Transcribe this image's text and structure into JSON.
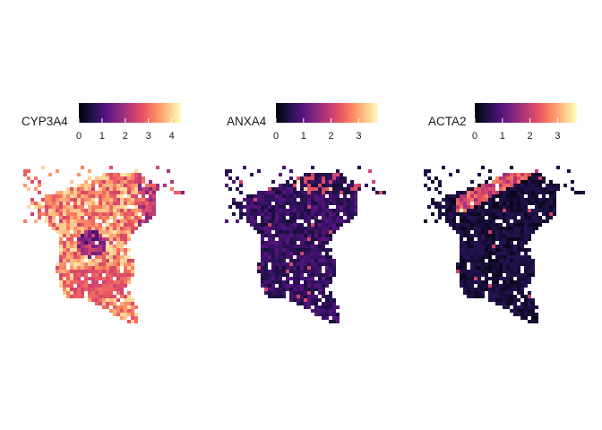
{
  "chart_data": [
    {
      "type": "heatmap",
      "title": "",
      "legend": {
        "title": "CYP3A4",
        "placement": "top",
        "ticks": [
          0,
          1,
          2,
          3,
          4
        ],
        "range": [
          0,
          4.4
        ]
      },
      "values_summary": "spatial spot expression; mostly high values (2-4.4) across tissue section, lower values in center and bottom lobe"
    },
    {
      "type": "heatmap",
      "title": "",
      "legend": {
        "title": "ANXA4",
        "placement": "top",
        "ticks": [
          0,
          1,
          2,
          3
        ],
        "range": [
          0,
          3.7
        ]
      },
      "values_summary": "spatial spot expression; mostly low values (0-1), a few higher spots along upper edge"
    },
    {
      "type": "heatmap",
      "title": "",
      "legend": {
        "title": "ACTA2",
        "placement": "top",
        "ticks": [
          0,
          1,
          2,
          3
        ],
        "range": [
          0,
          3.7
        ]
      },
      "values_summary": "spatial spot expression; mostly near 0, higher values (2-3.5) along upper diagonal edge"
    }
  ],
  "colors": {
    "colormap": [
      "#000004",
      "#1d1147",
      "#51127c",
      "#822681",
      "#b73779",
      "#e75263",
      "#fc8961",
      "#fec488",
      "#fcfdbf"
    ],
    "background": "#ffffff",
    "text": "#1a1a1a"
  }
}
